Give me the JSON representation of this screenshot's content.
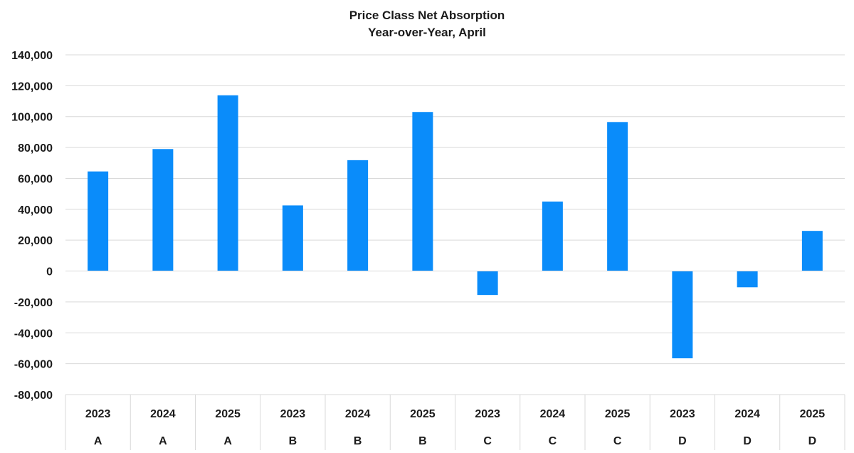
{
  "chart_data": {
    "type": "bar",
    "title": "Price Class Net Absorption",
    "subtitle": "Year-over-Year, April",
    "categories": [
      {
        "year": "2023",
        "class": "A"
      },
      {
        "year": "2024",
        "class": "A"
      },
      {
        "year": "2025",
        "class": "A"
      },
      {
        "year": "2023",
        "class": "B"
      },
      {
        "year": "2024",
        "class": "B"
      },
      {
        "year": "2025",
        "class": "B"
      },
      {
        "year": "2023",
        "class": "C"
      },
      {
        "year": "2024",
        "class": "C"
      },
      {
        "year": "2025",
        "class": "C"
      },
      {
        "year": "2023",
        "class": "D"
      },
      {
        "year": "2024",
        "class": "D"
      },
      {
        "year": "2025",
        "class": "D"
      }
    ],
    "values": [
      64500,
      79000,
      113800,
      42500,
      71800,
      103000,
      -15500,
      45000,
      96500,
      -56500,
      -10500,
      26000
    ],
    "ylim": [
      -80000,
      140000
    ],
    "y_ticks": [
      140000,
      120000,
      100000,
      80000,
      60000,
      40000,
      20000,
      0,
      -20000,
      -40000,
      -60000,
      -80000
    ],
    "y_tick_labels": [
      "140,000",
      "120,000",
      "100,000",
      "80,000",
      "60,000",
      "40,000",
      "20,000",
      "0",
      "-20,000",
      "-40,000",
      "-60,000",
      "-80,000"
    ],
    "bar_color": "#0A8CFA",
    "grid": true,
    "legend": "none"
  }
}
